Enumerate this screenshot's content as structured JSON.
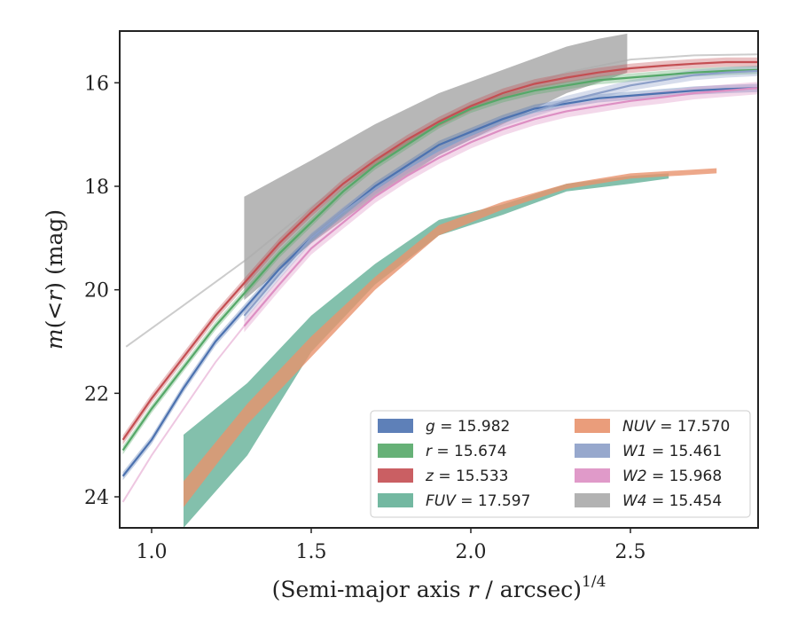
{
  "chart_data": {
    "type": "area",
    "xlabel": "(Semi-major axis r / arcsec)",
    "xlabel_italic_var": "r",
    "xlabel_exponent": "1/4",
    "ylabel": "m(<r) (mag)",
    "xlim": [
      0.9,
      2.9
    ],
    "ylim": [
      24.6,
      15.0
    ],
    "y_inverted": true,
    "x_ticks": [
      1.0,
      1.5,
      2.0,
      2.5
    ],
    "x_tick_labels": [
      "1.0",
      "1.5",
      "2.0",
      "2.5"
    ],
    "y_ticks": [
      16,
      18,
      20,
      22,
      24
    ],
    "y_tick_labels": [
      "16",
      "18",
      "20",
      "22",
      "24"
    ],
    "legend_position": "lower-right",
    "background_curve": {
      "color": "#cccccc",
      "x": [
        0.92,
        1.1,
        1.3,
        1.5,
        1.7,
        1.9,
        2.1,
        2.3,
        2.5,
        2.7,
        2.9
      ],
      "y": [
        21.1,
        20.3,
        19.4,
        18.4,
        17.5,
        16.8,
        16.2,
        15.8,
        15.55,
        15.47,
        15.45
      ]
    },
    "series": [
      {
        "legend_var": "W4",
        "legend_value": "= 15.454",
        "color": "#aaaaaa",
        "x": [
          1.29,
          1.5,
          1.7,
          1.9,
          2.1,
          2.3,
          2.4,
          2.49
        ],
        "y_lower": [
          20.2,
          19.1,
          18.2,
          17.4,
          16.8,
          16.2,
          16.0,
          15.8
        ],
        "y_upper": [
          18.2,
          17.5,
          16.8,
          16.2,
          15.75,
          15.3,
          15.15,
          15.05
        ]
      },
      {
        "legend_var": "g",
        "legend_value": "= 15.982",
        "color": "#4c72b0",
        "x": [
          0.91,
          1.0,
          1.1,
          1.2,
          1.3,
          1.4,
          1.5,
          1.6,
          1.7,
          1.8,
          1.9,
          2.0,
          2.1,
          2.2,
          2.3,
          2.4,
          2.5,
          2.6,
          2.7,
          2.8,
          2.9
        ],
        "y": [
          23.6,
          22.9,
          21.9,
          21.0,
          20.3,
          19.6,
          19.0,
          18.5,
          18.0,
          17.6,
          17.2,
          16.95,
          16.7,
          16.5,
          16.4,
          16.3,
          16.25,
          16.2,
          16.15,
          16.12,
          16.1
        ],
        "band": 0.08
      },
      {
        "legend_var": "r",
        "legend_value": "= 15.674",
        "color": "#55a868",
        "x": [
          0.91,
          1.0,
          1.1,
          1.2,
          1.3,
          1.4,
          1.5,
          1.6,
          1.7,
          1.8,
          1.9,
          2.0,
          2.1,
          2.2,
          2.3,
          2.4,
          2.5,
          2.6,
          2.7,
          2.8,
          2.9
        ],
        "y": [
          23.1,
          22.3,
          21.5,
          20.7,
          20.0,
          19.3,
          18.7,
          18.1,
          17.6,
          17.2,
          16.8,
          16.5,
          16.3,
          16.15,
          16.05,
          15.95,
          15.9,
          15.85,
          15.8,
          15.77,
          15.75
        ],
        "band": 0.08
      },
      {
        "legend_var": "z",
        "legend_value": "= 15.533",
        "color": "#c44e52",
        "x": [
          0.91,
          1.0,
          1.1,
          1.2,
          1.3,
          1.4,
          1.5,
          1.6,
          1.7,
          1.8,
          1.9,
          2.0,
          2.1,
          2.2,
          2.3,
          2.4,
          2.5,
          2.6,
          2.7,
          2.8,
          2.9
        ],
        "y": [
          22.9,
          22.1,
          21.3,
          20.5,
          19.8,
          19.1,
          18.5,
          17.95,
          17.5,
          17.1,
          16.75,
          16.45,
          16.2,
          16.02,
          15.9,
          15.8,
          15.72,
          15.67,
          15.63,
          15.6,
          15.6
        ],
        "band": 0.09
      },
      {
        "legend_var": "W1",
        "legend_value": "= 15.461",
        "color": "#8c9fc8",
        "x": [
          1.29,
          1.4,
          1.5,
          1.6,
          1.7,
          1.8,
          1.9,
          2.0,
          2.1,
          2.2,
          2.3,
          2.4,
          2.5,
          2.6,
          2.7,
          2.8,
          2.9
        ],
        "y": [
          20.5,
          19.7,
          19.0,
          18.5,
          18.05,
          17.65,
          17.3,
          17.0,
          16.75,
          16.55,
          16.35,
          16.2,
          16.05,
          15.95,
          15.85,
          15.8,
          15.77
        ],
        "band": 0.1
      },
      {
        "legend_var": "W2",
        "legend_value": "= 15.968",
        "color": "#dd8fc3",
        "x": [
          1.29,
          1.4,
          1.5,
          1.6,
          1.7,
          1.8,
          1.9,
          2.0,
          2.1,
          2.2,
          2.3,
          2.4,
          2.5,
          2.6,
          2.7,
          2.8,
          2.9
        ],
        "y": [
          20.7,
          19.9,
          19.2,
          18.7,
          18.2,
          17.8,
          17.45,
          17.15,
          16.9,
          16.7,
          16.55,
          16.45,
          16.35,
          16.28,
          16.2,
          16.15,
          16.1
        ],
        "band": 0.12,
        "faint_extension": {
          "x": [
            0.91,
            1.0,
            1.1,
            1.2,
            1.29
          ],
          "y": [
            24.1,
            23.2,
            22.3,
            21.4,
            20.7
          ]
        }
      },
      {
        "legend_var": "FUV",
        "legend_value": "= 17.597",
        "color": "#64b097",
        "x": [
          1.1,
          1.3,
          1.5,
          1.7,
          1.9,
          2.1,
          2.3,
          2.5,
          2.62
        ],
        "y_lower": [
          24.6,
          23.2,
          21.2,
          19.9,
          18.95,
          18.55,
          18.1,
          17.95,
          17.85
        ],
        "y_upper": [
          22.8,
          21.8,
          20.5,
          19.5,
          18.65,
          18.35,
          17.95,
          17.8,
          17.75
        ]
      },
      {
        "legend_var": "NUV",
        "legend_value": "= 17.570",
        "color": "#e8926d",
        "x": [
          1.1,
          1.3,
          1.5,
          1.7,
          1.9,
          2.1,
          2.3,
          2.5,
          2.77
        ],
        "y_lower": [
          24.2,
          22.6,
          21.3,
          20.0,
          18.95,
          18.45,
          18.05,
          17.85,
          17.75
        ],
        "y_upper": [
          23.7,
          22.2,
          20.9,
          19.75,
          18.75,
          18.3,
          17.95,
          17.75,
          17.65
        ]
      }
    ],
    "legend_order": [
      "g",
      "NUV",
      "r",
      "W1",
      "z",
      "W2",
      "FUV",
      "W4"
    ]
  }
}
